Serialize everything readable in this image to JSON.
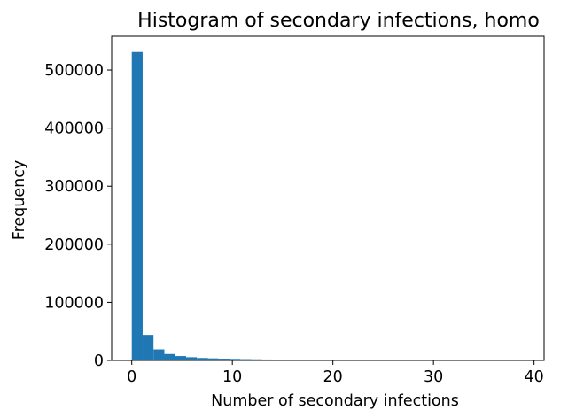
{
  "chart_data": {
    "type": "bar",
    "title": "Histogram of secondary infections, homo",
    "xlabel": "Number of secondary infections",
    "ylabel": "Frequency",
    "bar_color": "#1f77b4",
    "xlim": [
      -2,
      41
    ],
    "ylim": [
      0,
      558000
    ],
    "x_ticks": [
      0,
      10,
      20,
      30,
      40
    ],
    "y_ticks": [
      0,
      100000,
      200000,
      300000,
      400000,
      500000
    ],
    "x_tick_labels": [
      "0",
      "10",
      "20",
      "30",
      "40"
    ],
    "y_tick_labels": [
      "0",
      "100000",
      "200000",
      "300000",
      "400000",
      "500000"
    ],
    "bin_start": 0,
    "bin_width": 1.08,
    "values": [
      531000,
      44000,
      19000,
      11000,
      7500,
      5500,
      4200,
      3500,
      3000,
      2600,
      2200,
      1900,
      1600,
      1200,
      1000,
      800,
      700,
      600,
      550,
      500,
      450,
      400,
      380,
      350,
      320,
      300,
      280,
      260,
      240,
      60,
      0,
      0,
      0,
      0,
      0,
      0
    ],
    "grid": false
  }
}
